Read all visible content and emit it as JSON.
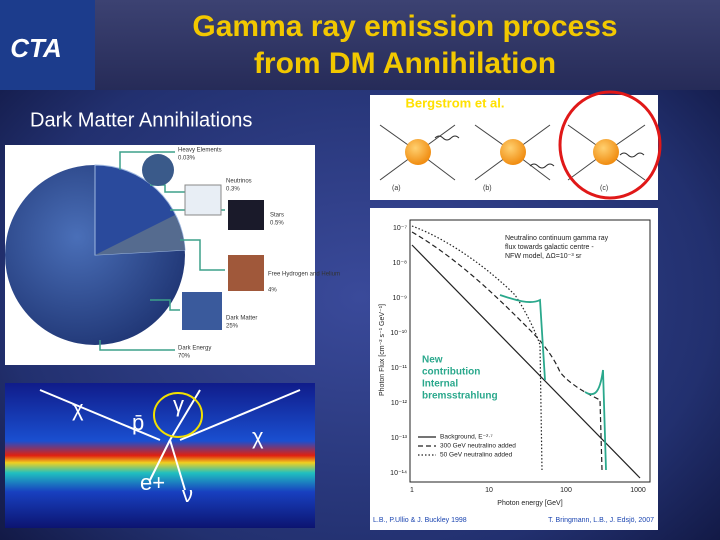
{
  "header": {
    "logo": "CTA",
    "title": [
      "Gamma ray emission process",
      "from DM Annihilation"
    ]
  },
  "left_heading": "Dark Matter Annihilations",
  "pie": {
    "labels": [
      {
        "name": "Heavy Elements",
        "value": "0.03%"
      },
      {
        "name": "Neutrinos",
        "value": "0.3%"
      },
      {
        "name": "Stars",
        "value": "0.5%"
      },
      {
        "name": "Free Hydrogen and Helium",
        "value": "4%"
      },
      {
        "name": "Dark Matter",
        "value": "25%"
      },
      {
        "name": "Dark Energy",
        "value": "70%"
      }
    ]
  },
  "sky_map": {
    "symbols": [
      "χ",
      "γ",
      "p̄",
      "χ",
      "e+",
      "ν"
    ]
  },
  "feynman": {
    "caption": "Bergstrom et al.",
    "panels": [
      "(a)",
      "(b)",
      "(c)"
    ]
  },
  "plot": {
    "annotation": [
      "Neutralino continuum gamma ray",
      "flux towards galactic centre -",
      "NFW model, ΔΩ=10⁻³ sr"
    ],
    "highlight": [
      "New",
      "contribution",
      "Internal",
      "bremsstrahlung"
    ],
    "yticks": [
      "10⁻⁷",
      "10⁻⁸",
      "10⁻⁹",
      "10⁻¹⁰",
      "10⁻¹¹",
      "10⁻¹²",
      "10⁻¹³",
      "10⁻¹⁴"
    ],
    "xticks": [
      "1",
      "10",
      "100",
      "1000"
    ],
    "ylabel": "Photon Flux [cm⁻² s⁻¹ GeV⁻¹]",
    "xlabel": "Photon energy [GeV]",
    "legend": [
      "Background, E⁻²·⁷",
      "300 GeV neutralino added",
      "50 GeV neutralino added"
    ],
    "credits": [
      "L.B., P.Ullio & J. Buckley 1998",
      "T. Bringmann, L.B., J. Edsjö, 2007"
    ]
  }
}
